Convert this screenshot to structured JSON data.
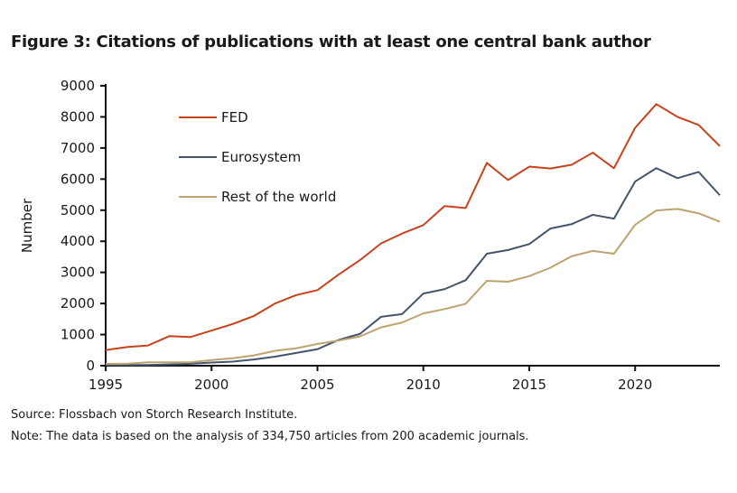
{
  "chart_data": {
    "type": "line",
    "title": "Figure 3: Citations of publications with at least one central bank author",
    "xlabel": "",
    "ylabel": "Number",
    "xlim": [
      1995,
      2024
    ],
    "ylim": [
      0,
      9000
    ],
    "xticks": [
      1995,
      2000,
      2005,
      2010,
      2015,
      2020
    ],
    "yticks": [
      0,
      1000,
      2000,
      3000,
      4000,
      5000,
      6000,
      7000,
      8000,
      9000
    ],
    "grid": false,
    "legend_position": "top-left",
    "x": [
      1995,
      1996,
      1997,
      1998,
      1999,
      2000,
      2001,
      2002,
      2003,
      2004,
      2005,
      2006,
      2007,
      2008,
      2009,
      2010,
      2011,
      2012,
      2013,
      2014,
      2015,
      2016,
      2017,
      2018,
      2019,
      2020,
      2021,
      2022,
      2023,
      2024
    ],
    "series": [
      {
        "name": "FED",
        "color": "#c8421b",
        "values": [
          500,
          600,
          650,
          950,
          920,
          1130,
          1340,
          1600,
          2000,
          2270,
          2430,
          2930,
          3390,
          3930,
          4250,
          4520,
          5130,
          5070,
          6520,
          5970,
          6400,
          6340,
          6460,
          6850,
          6350,
          7650,
          8410,
          8000,
          7740,
          7060
        ]
      },
      {
        "name": "Eurosystem",
        "color": "#44546a",
        "values": [
          20,
          20,
          20,
          40,
          60,
          100,
          130,
          200,
          290,
          410,
          530,
          830,
          1020,
          1570,
          1660,
          2320,
          2460,
          2750,
          3600,
          3720,
          3910,
          4410,
          4550,
          4850,
          4730,
          5920,
          6350,
          6030,
          6230,
          5480
        ]
      },
      {
        "name": "Rest of the world",
        "color": "#bca36f",
        "values": [
          60,
          60,
          110,
          110,
          110,
          180,
          240,
          330,
          480,
          560,
          700,
          810,
          940,
          1230,
          1390,
          1680,
          1820,
          1990,
          2730,
          2700,
          2880,
          3150,
          3520,
          3690,
          3600,
          4530,
          4990,
          5040,
          4900,
          4630
        ]
      }
    ]
  },
  "notes": {
    "source": "Source: Flossbach von Storch Research Institute.",
    "note": "Note: The data is based on the analysis of 334,750 articles from 200 academic journals."
  }
}
